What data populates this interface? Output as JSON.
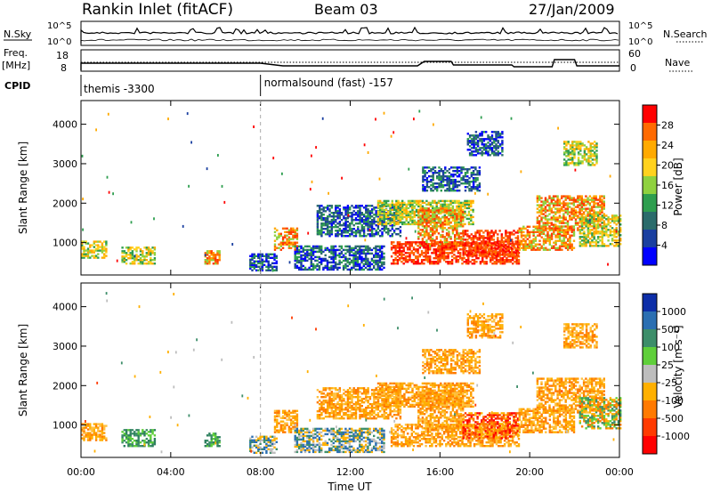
{
  "header": {
    "station": "Rankin Inlet (fitACF)",
    "beam": "Beam 03",
    "date": "27/Jan/2009"
  },
  "summary": {
    "nsky_label": "N.Sky",
    "nsearch_label": "N.Search",
    "nsky_ticks": [
      "10^5",
      "10^0"
    ],
    "nsearch_ticks": [
      "10^5",
      "10^0"
    ],
    "freq_label": "Freq.",
    "freq_unit": "[MHz]",
    "freq_ticks": [
      "18",
      "8"
    ],
    "nave_label": "Nave",
    "nave_ticks": [
      "60",
      "0"
    ],
    "cpid_label": "CPID",
    "cpid_segments": [
      {
        "label": "themis -3300",
        "start_hour": 0
      },
      {
        "label": "normalsound (fast) -157",
        "start_hour": 8
      }
    ]
  },
  "panels": {
    "power": {
      "ylabel": "Slant Range [km]",
      "colorbar_label": "Power [dB]",
      "colorbar_ticks": [
        "28",
        "24",
        "20",
        "16",
        "12",
        "8",
        "4"
      ]
    },
    "velocity": {
      "ylabel": "Slant Range [km]",
      "colorbar_label": "Velocity [m s⁻¹]",
      "colorbar_ticks": [
        "1000",
        "500",
        "100",
        "25",
        "-25",
        "-100",
        "-500",
        "-1000"
      ]
    }
  },
  "xaxis": {
    "label": "Time UT",
    "ticks": [
      "00:00",
      "04:00",
      "08:00",
      "12:00",
      "16:00",
      "20:00",
      "00:00"
    ]
  },
  "colors": {
    "power_scale": [
      "#ff0000",
      "#ff6a00",
      "#ffaa00",
      "#ffd21e",
      "#8fd13f",
      "#2e9e4f",
      "#2a6b6b",
      "#1a3fa0",
      "#0000ff"
    ],
    "velocity_scale": [
      "#0d2ea8",
      "#2b6fb2",
      "#3d8e6a",
      "#5fcf3a",
      "#bdbdbd",
      "#ffb000",
      "#ff7a00",
      "#ff3a00",
      "#ff0000"
    ]
  },
  "chart_data": [
    {
      "type": "heatmap",
      "title": "Power",
      "x_unit": "hour UT",
      "y_unit": "km",
      "xlim": [
        0,
        24
      ],
      "ylim": [
        180,
        4600
      ],
      "yticks": [
        1000,
        2000,
        3000,
        4000
      ],
      "cbar": [
        0,
        32
      ],
      "regions": [
        {
          "t0": 0.0,
          "t1": 1.1,
          "r0": 600,
          "r1": 1050,
          "level": "mid"
        },
        {
          "t0": 1.8,
          "t1": 3.3,
          "r0": 450,
          "r1": 900,
          "level": "mid"
        },
        {
          "t0": 5.5,
          "t1": 6.2,
          "r0": 450,
          "r1": 800,
          "level": "high"
        },
        {
          "t0": 7.5,
          "t1": 8.7,
          "r0": 280,
          "r1": 700,
          "level": "low"
        },
        {
          "t0": 8.6,
          "t1": 9.6,
          "r0": 800,
          "r1": 1350,
          "level": "high"
        },
        {
          "t0": 9.5,
          "t1": 13.5,
          "r0": 300,
          "r1": 900,
          "level": "low"
        },
        {
          "t0": 10.5,
          "t1": 14.2,
          "r0": 1150,
          "r1": 1950,
          "level": "low"
        },
        {
          "t0": 13.2,
          "t1": 17.5,
          "r0": 1450,
          "r1": 2050,
          "level": "mid"
        },
        {
          "t0": 15.0,
          "t1": 17.0,
          "r0": 900,
          "r1": 1850,
          "level": "high"
        },
        {
          "t0": 13.8,
          "t1": 19.5,
          "r0": 450,
          "r1": 1000,
          "level": "max"
        },
        {
          "t0": 17.0,
          "t1": 19.5,
          "r0": 650,
          "r1": 1300,
          "level": "max"
        },
        {
          "t0": 19.5,
          "t1": 22.0,
          "r0": 800,
          "r1": 1400,
          "level": "high"
        },
        {
          "t0": 20.3,
          "t1": 23.3,
          "r0": 1300,
          "r1": 2200,
          "level": "high"
        },
        {
          "t0": 22.2,
          "t1": 24.0,
          "r0": 900,
          "r1": 1700,
          "level": "mid"
        },
        {
          "t0": 21.5,
          "t1": 23.0,
          "r0": 2950,
          "r1": 3550,
          "level": "mid"
        },
        {
          "t0": 15.2,
          "t1": 17.8,
          "r0": 2300,
          "r1": 2900,
          "level": "low"
        },
        {
          "t0": 17.2,
          "t1": 18.8,
          "r0": 3200,
          "r1": 3800,
          "level": "low"
        }
      ]
    },
    {
      "type": "heatmap",
      "title": "Velocity",
      "x_unit": "hour UT",
      "y_unit": "km",
      "xlim": [
        0,
        24
      ],
      "ylim": [
        180,
        4600
      ],
      "yticks": [
        1000,
        2000,
        3000,
        4000
      ],
      "cbar": [
        -1000,
        1000
      ],
      "regions": [
        {
          "t0": 0.0,
          "t1": 1.1,
          "r0": 600,
          "r1": 1050,
          "level": "neg"
        },
        {
          "t0": 1.8,
          "t1": 3.3,
          "r0": 450,
          "r1": 900,
          "level": "pos"
        },
        {
          "t0": 5.5,
          "t1": 6.2,
          "r0": 450,
          "r1": 800,
          "level": "pos"
        },
        {
          "t0": 7.5,
          "t1": 8.7,
          "r0": 280,
          "r1": 700,
          "level": "zero"
        },
        {
          "t0": 8.6,
          "t1": 9.6,
          "r0": 800,
          "r1": 1350,
          "level": "neg"
        },
        {
          "t0": 9.5,
          "t1": 13.5,
          "r0": 300,
          "r1": 900,
          "level": "zero"
        },
        {
          "t0": 10.5,
          "t1": 14.2,
          "r0": 1150,
          "r1": 1950,
          "level": "neg"
        },
        {
          "t0": 13.2,
          "t1": 17.5,
          "r0": 1450,
          "r1": 2050,
          "level": "neg"
        },
        {
          "t0": 15.0,
          "t1": 17.0,
          "r0": 900,
          "r1": 1850,
          "level": "neg"
        },
        {
          "t0": 13.8,
          "t1": 19.5,
          "r0": 450,
          "r1": 1000,
          "level": "neg"
        },
        {
          "t0": 17.0,
          "t1": 19.5,
          "r0": 650,
          "r1": 1300,
          "level": "strong"
        },
        {
          "t0": 19.5,
          "t1": 22.0,
          "r0": 800,
          "r1": 1400,
          "level": "neg"
        },
        {
          "t0": 20.3,
          "t1": 23.3,
          "r0": 1300,
          "r1": 2200,
          "level": "neg"
        },
        {
          "t0": 22.2,
          "t1": 24.0,
          "r0": 900,
          "r1": 1700,
          "level": "mixed"
        },
        {
          "t0": 21.5,
          "t1": 23.0,
          "r0": 2950,
          "r1": 3550,
          "level": "neg"
        },
        {
          "t0": 15.2,
          "t1": 17.8,
          "r0": 2300,
          "r1": 2900,
          "level": "neg"
        },
        {
          "t0": 17.2,
          "t1": 18.8,
          "r0": 3200,
          "r1": 3800,
          "level": "neg"
        }
      ]
    }
  ]
}
